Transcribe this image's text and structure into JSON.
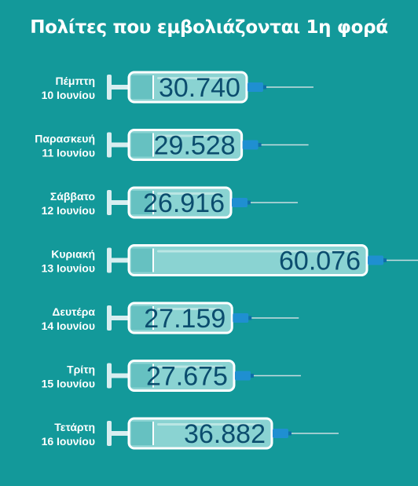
{
  "title": "Πολίτες που εμβολιάζονται 1η φορά",
  "colors": {
    "background": "#13999a",
    "barrel_fill": "#8ad3d2",
    "barrel_outline": "#ffffff",
    "plunger": "#d8eef0",
    "hub": "#1f8fd1",
    "needle": "#c9dde0",
    "value_text": "#0b4d6e"
  },
  "chart_data": {
    "type": "bar",
    "orientation": "horizontal",
    "style": "syringe",
    "title": "Πολίτες που εμβολιάζονται 1η φορά",
    "xlabel": "",
    "ylabel": "",
    "grid": false,
    "legend": "none",
    "categories": [
      [
        "Πέμπτη",
        "10 Ιουνίου"
      ],
      [
        "Παρασκευή",
        "11 Ιουνίου"
      ],
      [
        "Σάββατο",
        "12 Ιουνίου"
      ],
      [
        "Κυριακή",
        "13 Ιουνίου"
      ],
      [
        "Δευτέρα",
        "14 Ιουνίου"
      ],
      [
        "Τρίτη",
        "15 Ιουνίου"
      ],
      [
        "Τετάρτη",
        "16 Ιουνίου"
      ]
    ],
    "values": [
      30740,
      29528,
      26916,
      60076,
      27159,
      27675,
      36882
    ],
    "value_labels": [
      "30.740",
      "29.528",
      "26.916",
      "60.076",
      "27.159",
      "27.675",
      "36.882"
    ],
    "xlim": [
      0,
      60076
    ]
  }
}
